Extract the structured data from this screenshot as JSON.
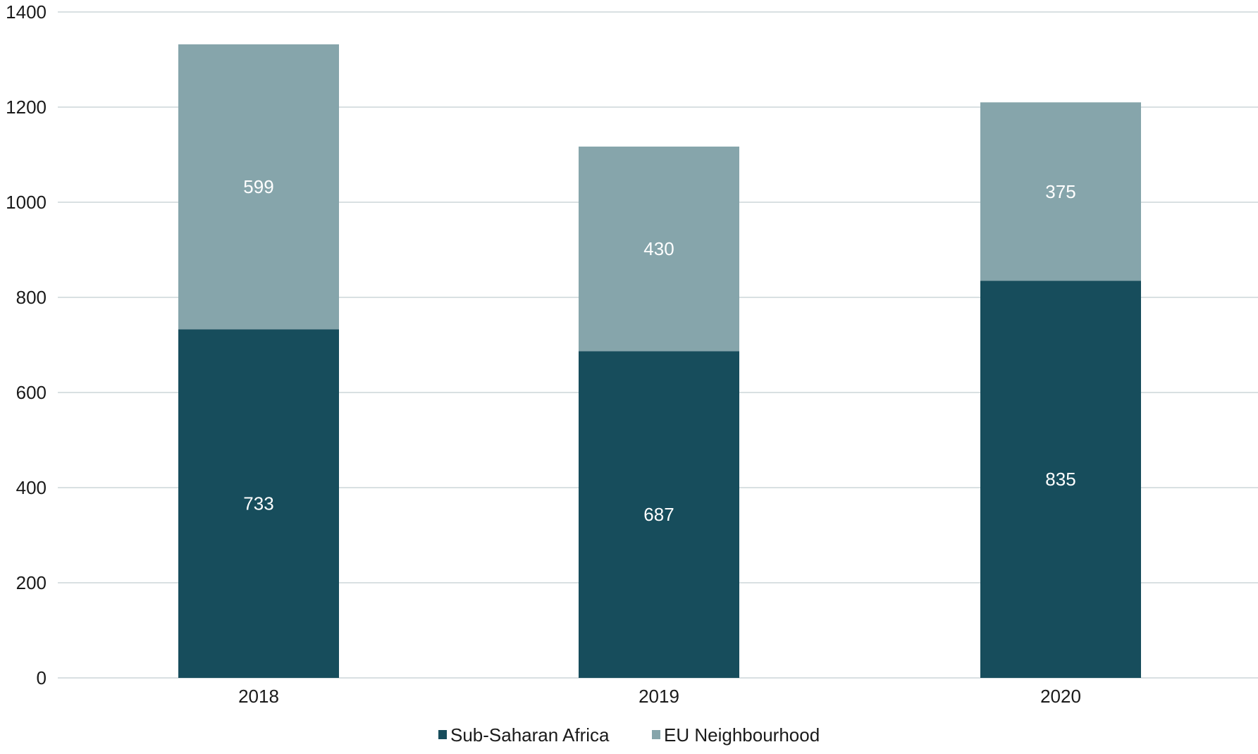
{
  "chart_data": {
    "type": "bar",
    "stacked": true,
    "title": "",
    "xlabel": "",
    "ylabel": "",
    "categories": [
      "2018",
      "2019",
      "2020"
    ],
    "series": [
      {
        "name": "Sub-Saharan Africa",
        "values": [
          733,
          687,
          835
        ],
        "color": "#174d5c"
      },
      {
        "name": "EU Neighbourhood",
        "values": [
          599,
          430,
          375
        ],
        "color": "#86a5ab"
      }
    ],
    "ylim": [
      0,
      1400
    ],
    "yticks": [
      0,
      200,
      400,
      600,
      800,
      1000,
      1200,
      1400
    ],
    "grid": true,
    "legend": "bottom",
    "data_labels": true,
    "colors": {
      "grid": "#d9e0e2",
      "label_text": "#ffffff",
      "axis_text": "#1a1a1a"
    }
  }
}
